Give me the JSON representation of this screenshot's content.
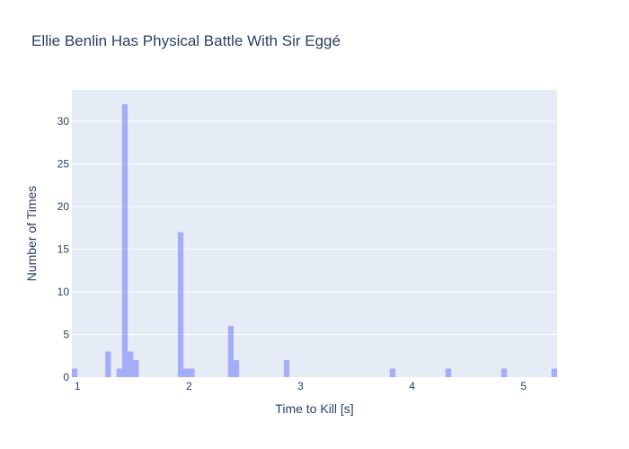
{
  "chart_data": {
    "type": "bar",
    "title": "Ellie Benlin Has Physical Battle With Sir Eggé",
    "xlabel": "Time to Kill [s]",
    "ylabel": "Number of Times",
    "xlim": [
      0.95,
      5.3
    ],
    "ylim": [
      0,
      33.7
    ],
    "bin_width": 0.05,
    "x_ticks": [
      1,
      2,
      3,
      4,
      5
    ],
    "y_ticks": [
      0,
      5,
      10,
      15,
      20,
      25,
      30
    ],
    "grid": true,
    "legend": "none",
    "bar_color": "#636efa",
    "plot_bg": "#e5ecf6",
    "bins": [
      {
        "x0": 0.95,
        "count": 1
      },
      {
        "x0": 1.25,
        "count": 3
      },
      {
        "x0": 1.35,
        "count": 1
      },
      {
        "x0": 1.4,
        "count": 32
      },
      {
        "x0": 1.45,
        "count": 3
      },
      {
        "x0": 1.5,
        "count": 2
      },
      {
        "x0": 1.9,
        "count": 17
      },
      {
        "x0": 1.95,
        "count": 1
      },
      {
        "x0": 2.0,
        "count": 1
      },
      {
        "x0": 2.35,
        "count": 6
      },
      {
        "x0": 2.4,
        "count": 2
      },
      {
        "x0": 2.85,
        "count": 2
      },
      {
        "x0": 3.8,
        "count": 1
      },
      {
        "x0": 4.3,
        "count": 1
      },
      {
        "x0": 4.8,
        "count": 1
      },
      {
        "x0": 5.25,
        "count": 1
      }
    ]
  }
}
